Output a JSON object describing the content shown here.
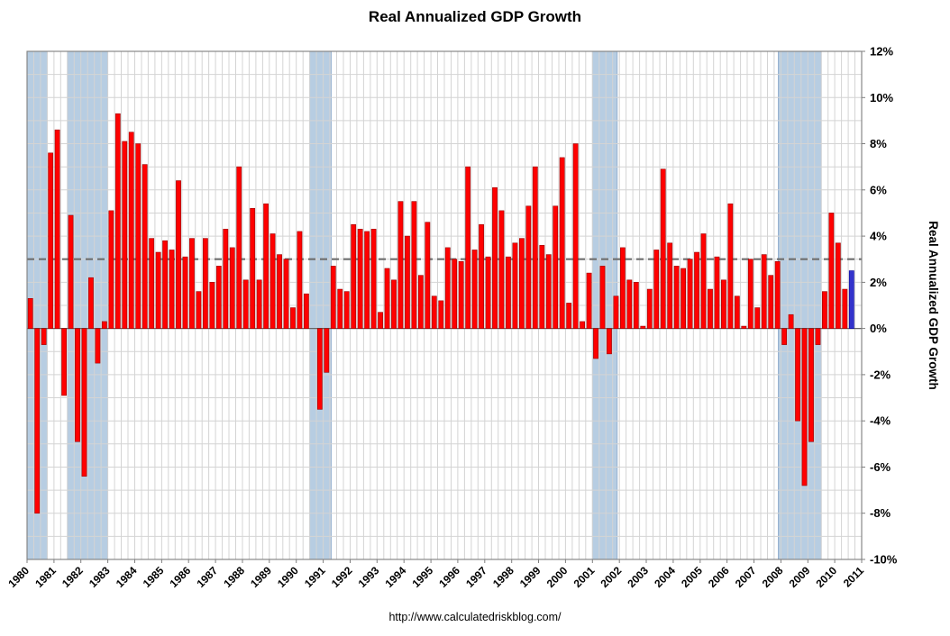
{
  "page": {
    "title": "Real Annualized GDP Growth",
    "footer_url": "http://www.calculatedriskblog.com/"
  },
  "chart_data": {
    "type": "bar",
    "title": "Real Annualized GDP Growth",
    "y_axis_label": "Real Annualized GDP Growth",
    "unit": "percent",
    "frequency": "quarterly",
    "start_year": 1980,
    "ylim": [
      -10,
      12
    ],
    "y_tick_step": 2,
    "y_tick_labels": [
      "12%",
      "10%",
      "8%",
      "6%",
      "4%",
      "2%",
      "0%",
      "-2%",
      "-4%",
      "-6%",
      "-8%",
      "-10%"
    ],
    "x_tick_labels": [
      "1980",
      "1981",
      "1982",
      "1983",
      "1984",
      "1985",
      "1986",
      "1987",
      "1988",
      "1989",
      "1990",
      "1991",
      "1992",
      "1993",
      "1994",
      "1995",
      "1996",
      "1997",
      "1998",
      "1999",
      "2000",
      "2001",
      "2002",
      "2003",
      "2004",
      "2005",
      "2006",
      "2007",
      "2008",
      "2009",
      "2010",
      "2011"
    ],
    "reference_line": 3,
    "grid": true,
    "legend": "none",
    "values": [
      1.3,
      -8.0,
      -0.7,
      7.6,
      8.6,
      -2.9,
      4.9,
      -4.9,
      -6.4,
      2.2,
      -1.5,
      0.3,
      5.1,
      9.3,
      8.1,
      8.5,
      8.0,
      7.1,
      3.9,
      3.3,
      3.8,
      3.4,
      6.4,
      3.1,
      3.9,
      1.6,
      3.9,
      2.0,
      2.7,
      4.3,
      3.5,
      7.0,
      2.1,
      5.2,
      2.1,
      5.4,
      4.1,
      3.2,
      3.0,
      0.9,
      4.2,
      1.5,
      0.0,
      -3.5,
      -1.9,
      2.7,
      1.7,
      1.6,
      4.5,
      4.3,
      4.2,
      4.3,
      0.7,
      2.6,
      2.1,
      5.5,
      4.0,
      5.5,
      2.3,
      4.6,
      1.4,
      1.2,
      3.5,
      3.0,
      2.9,
      7.0,
      3.4,
      4.5,
      3.1,
      6.1,
      5.1,
      3.1,
      3.7,
      3.9,
      5.3,
      7.0,
      3.6,
      3.2,
      5.3,
      7.4,
      1.1,
      8.0,
      0.3,
      2.4,
      -1.3,
      2.7,
      -1.1,
      1.4,
      3.5,
      2.1,
      2.0,
      0.1,
      1.7,
      3.4,
      6.9,
      3.7,
      2.7,
      2.6,
      3.0,
      3.3,
      4.1,
      1.7,
      3.1,
      2.1,
      5.4,
      1.4,
      0.1,
      3.0,
      0.9,
      3.2,
      2.3,
      2.9,
      -0.7,
      0.6,
      -4.0,
      -6.8,
      -4.9,
      -0.7,
      1.6,
      5.0,
      3.7,
      1.7,
      2.5
    ],
    "highlight": {
      "index": 122,
      "color": "#3333cc"
    },
    "recessions": [
      {
        "start": 1980.0,
        "end": 1980.75
      },
      {
        "start": 1981.5,
        "end": 1983.0
      },
      {
        "start": 1990.5,
        "end": 1991.3
      },
      {
        "start": 2001.0,
        "end": 2001.92
      },
      {
        "start": 2007.9,
        "end": 2009.5
      }
    ],
    "colors": {
      "bar": "#ff0000",
      "bar_edge": "#990000",
      "highlight_bar": "#3333cc",
      "highlight_edge": "#000099",
      "recession_band": "#b7cde2",
      "recession_edge": "#8eaacc",
      "grid": "#d4d4d4",
      "axis": "#7f7f7f",
      "zero_line": "#666666",
      "reference_line": "#6e6e6e",
      "background": "#ffffff",
      "text": "#000000"
    }
  }
}
